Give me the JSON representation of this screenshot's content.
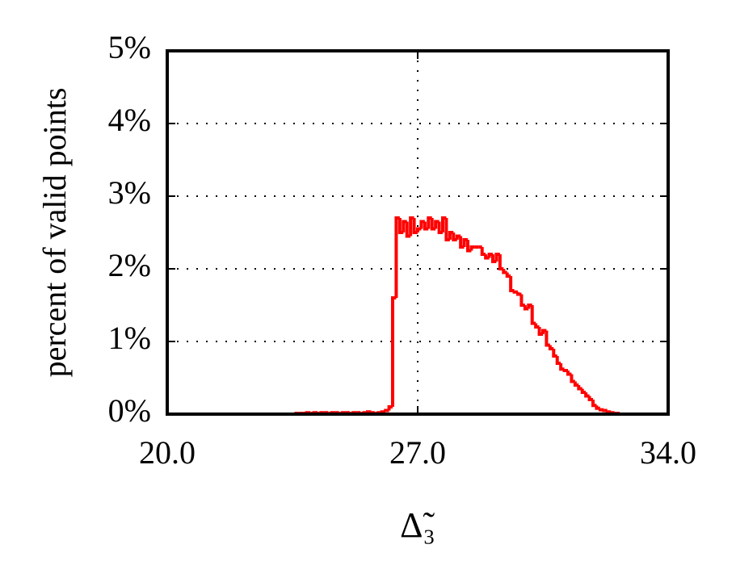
{
  "chart_data": {
    "type": "histogram",
    "ylabel": "percent of valid points",
    "xlabel": "Δ̃₃",
    "color": "#ff0000",
    "grid": true,
    "xlim": [
      20,
      34
    ],
    "ylim": [
      0,
      5
    ],
    "xticks": [
      {
        "value": 20,
        "label": "20.0"
      },
      {
        "value": 27,
        "label": "27.0"
      },
      {
        "value": 34,
        "label": "34.0"
      }
    ],
    "yticks": [
      {
        "value": 0,
        "label": "0%"
      },
      {
        "value": 1,
        "label": "1%"
      },
      {
        "value": 2,
        "label": "2%"
      },
      {
        "value": 3,
        "label": "3%"
      },
      {
        "value": 4,
        "label": "4%"
      },
      {
        "value": 5,
        "label": "5%"
      }
    ],
    "bins": [
      23.6,
      23.7,
      23.8,
      23.9,
      24.0,
      24.1,
      24.2,
      24.3,
      24.4,
      24.5,
      24.6,
      24.7,
      24.8,
      24.9,
      25.0,
      25.1,
      25.2,
      25.3,
      25.4,
      25.5,
      25.6,
      25.7,
      25.8,
      25.9,
      26.0,
      26.1,
      26.2,
      26.3,
      26.4,
      26.5,
      26.6,
      26.7,
      26.8,
      26.9,
      27.0,
      27.1,
      27.2,
      27.3,
      27.4,
      27.5,
      27.6,
      27.7,
      27.8,
      27.9,
      28.0,
      28.1,
      28.2,
      28.3,
      28.4,
      28.5,
      28.6,
      28.7,
      28.8,
      28.9,
      29.0,
      29.1,
      29.2,
      29.3,
      29.4,
      29.5,
      29.6,
      29.7,
      29.8,
      29.9,
      30.0,
      30.1,
      30.2,
      30.3,
      30.4,
      30.5,
      30.6,
      30.7,
      30.8,
      30.9,
      31.0,
      31.1,
      31.2,
      31.3,
      31.4,
      31.5,
      31.6,
      31.7,
      31.8,
      31.9,
      32.0,
      32.1,
      32.2,
      32.3,
      32.4,
      32.5,
      32.6
    ],
    "values": [
      0.01,
      0.01,
      0.01,
      0.02,
      0.01,
      0.02,
      0.01,
      0.02,
      0.02,
      0.01,
      0.02,
      0.02,
      0.01,
      0.02,
      0.02,
      0.01,
      0.02,
      0.02,
      0.01,
      0.02,
      0.03,
      0.02,
      0.01,
      0.02,
      0.03,
      0.05,
      0.1,
      1.6,
      2.7,
      2.5,
      2.65,
      2.45,
      2.7,
      2.5,
      2.55,
      2.65,
      2.55,
      2.7,
      2.55,
      2.65,
      2.5,
      2.7,
      2.4,
      2.5,
      2.4,
      2.45,
      2.3,
      2.4,
      2.25,
      2.3,
      2.3,
      2.3,
      2.2,
      2.15,
      2.2,
      2.1,
      2.2,
      2.0,
      1.95,
      1.9,
      1.7,
      1.68,
      1.65,
      1.5,
      1.45,
      1.5,
      1.25,
      1.2,
      1.1,
      1.15,
      0.95,
      0.9,
      0.8,
      0.7,
      0.62,
      0.6,
      0.55,
      0.45,
      0.4,
      0.35,
      0.3,
      0.25,
      0.2,
      0.12,
      0.08,
      0.06,
      0.05,
      0.03,
      0.02,
      0.01
    ]
  }
}
